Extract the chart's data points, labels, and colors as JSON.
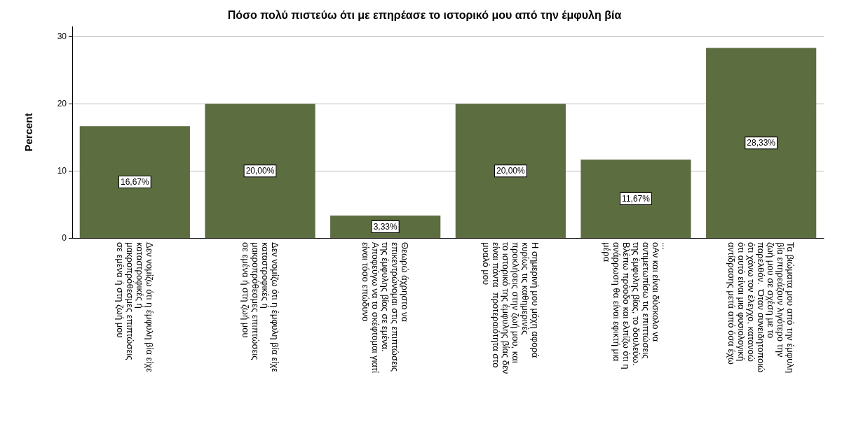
{
  "chart_data": {
    "type": "bar",
    "title": "Πόσο πολύ πιστεύω ότι με επηρέασε το ιστορικό μου από την έμφυλη βία",
    "ylabel": "Percent",
    "categories": [
      "Δεν νομίζω ότι η έμφυλη βία είχε\nκαταστροφικές ή\nμακροπρόθεσμες επιπτώσεις\nσε εμένα ή στη ζωή μου",
      "Δεν νομίζω ότι η έμφυλη βία είχε\nκαταστροφικές ή\nμακροπρόθεσμες επιπτώσεις\nσε εμένα ή στη ζωή μου",
      "Θεωρώ άχρηστο να\nεπικεντρώνομαι στις επιπτώσεις\nτης έμφυλης βίας σε εμένα.\nΑποφεύγω να το σκέφτομαι γιατί\nείναι τόσο επώδυνο",
      "Η σημερινή μου μάχη αφορά\nκυρίως τις καθημερινές\nπροκλήσεις στην ζωή μου, και\nτο ιστορικό της έμφυλης βίας δεν\nείναι πάντα  προτεραιότητα στο\nμυαλό μου",
      "...\nοΑν και είναι δύσκολο να\nαντιμετωπίσω τις επιπτώσεις\nτης έμφυλης βίας, το δουλεύω.\nΒλέπω πρόοδο και ελπίζω ότι η\nανάρρωση θα είναι εφικτή μια\nμέρα",
      "Τα βιώματα μου από την έμφυλη\nβία επηρεάζουν λιγότερο την\nζωή μου σε σχέση με το\nπαρελθόν.  Όταν συνειδητοποιώ\nότι χάνω τον έλεγχο, κατανοώ\nότι αυτό είναι μια φυσιολογική\nαντίδρασης μετά από όσα έχω"
    ],
    "values": [
      16.67,
      20,
      3.33,
      20,
      11.67,
      28.33
    ],
    "value_labels": [
      "16,67%",
      "20,00%",
      "3,33%",
      "20,00%",
      "11,67%",
      "28,33%"
    ],
    "color": "#5c6d40",
    "ylim": [
      0,
      31.5
    ],
    "yticks": [
      0,
      10,
      20,
      30
    ],
    "grid": "y"
  }
}
